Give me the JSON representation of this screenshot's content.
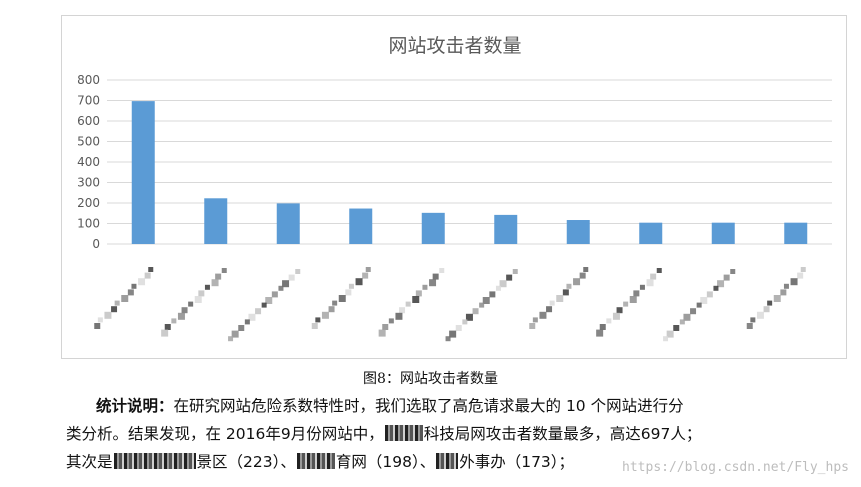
{
  "chart_data": {
    "type": "bar",
    "title": "网站攻击者数量",
    "categories": [
      "",
      "",
      "",
      "",
      "",
      "",
      "",
      "",
      "",
      ""
    ],
    "values": [
      697,
      223,
      198,
      173,
      152,
      142,
      117,
      104,
      104,
      104
    ],
    "yticks": [
      "0",
      "100",
      "200",
      "300",
      "400",
      "500",
      "600",
      "700",
      "800"
    ],
    "ylim": [
      0,
      800
    ],
    "xlabel": "",
    "ylabel": "",
    "grid": true,
    "legend": "none",
    "bar_color": "#5b9bd5",
    "grid_color": "#d9d9d9"
  },
  "caption": "图8：网站攻击者数量",
  "paragraph": {
    "label": "统计说明：",
    "line1_rest": "在研究网站危险系数特性时，我们选取了高危请求最大的 10 个网站进行分",
    "line2_a": "类分析。结果发现，在 2016年9月份网站中，",
    "line2_b": "科技局网攻击者数量最多，高达697人；",
    "line3_a": "其次是",
    "line3_b": "景区（223）、",
    "line3_c": "育网（198）、",
    "line3_d": "外事办（173）；"
  },
  "watermark": "https://blog.csdn.net/Fly_hps"
}
